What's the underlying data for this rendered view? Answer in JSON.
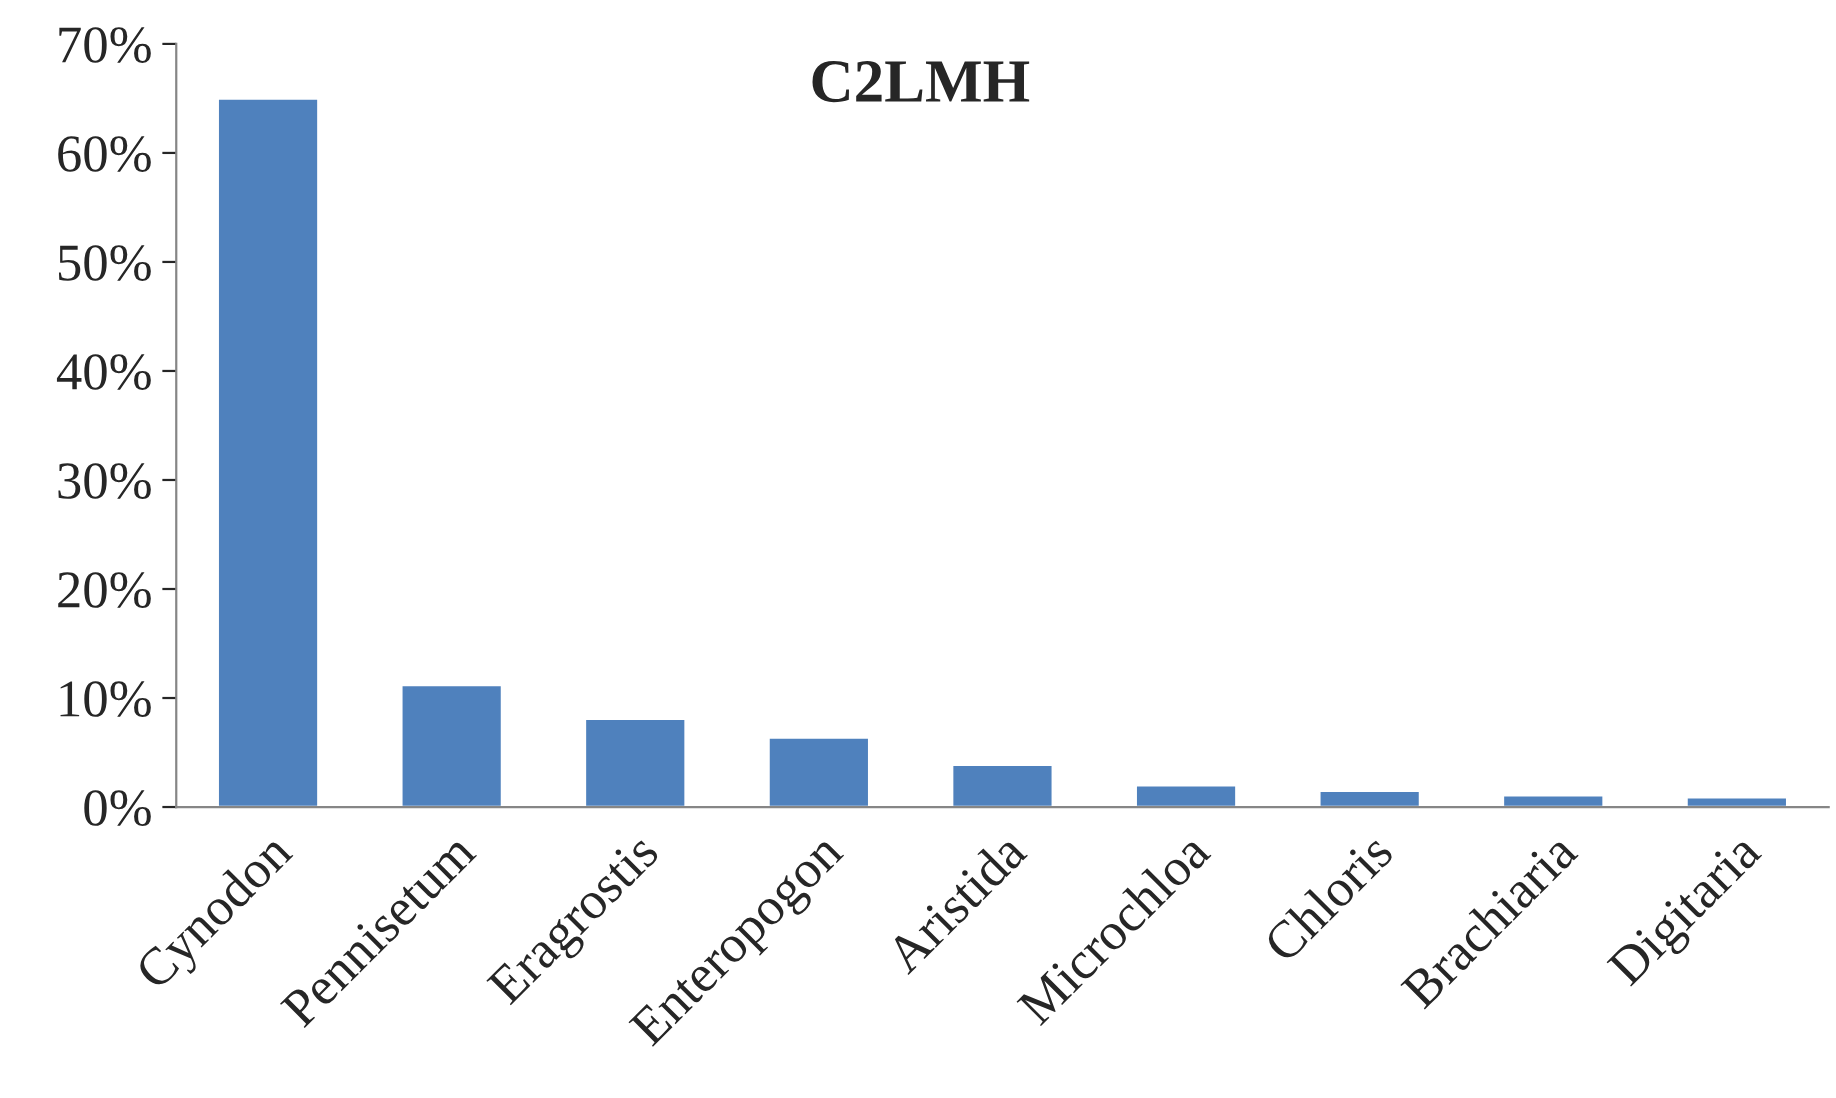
{
  "chart_data": {
    "type": "bar",
    "title": "C2LMH",
    "categories": [
      "Cynodon",
      "Pennisetum",
      "Eragrostis",
      "Enteropogon",
      "Aristida",
      "Microchloa",
      "Chloris",
      "Brachiaria",
      "Digitaria"
    ],
    "values": [
      65,
      11.2,
      8.1,
      6.4,
      3.9,
      2.0,
      1.5,
      1.1,
      0.9
    ],
    "color": "#4f81bd",
    "ylim": [
      0,
      70
    ],
    "yticks": [
      {
        "value": 0,
        "label": "0%"
      },
      {
        "value": 10,
        "label": "10%"
      },
      {
        "value": 20,
        "label": "20%"
      },
      {
        "value": 30,
        "label": "30%"
      },
      {
        "value": 40,
        "label": "40%"
      },
      {
        "value": 50,
        "label": "50%"
      },
      {
        "value": 60,
        "label": "60%"
      },
      {
        "value": 70,
        "label": "70%"
      }
    ],
    "grid": false,
    "legend": false
  }
}
